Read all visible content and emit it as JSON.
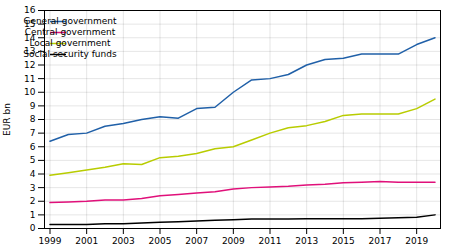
{
  "chart_data": {
    "type": "line",
    "ylabel": "EUR bn",
    "x": [
      1999,
      2000,
      2001,
      2002,
      2003,
      2004,
      2005,
      2006,
      2007,
      2008,
      2009,
      2010,
      2011,
      2012,
      2013,
      2014,
      2015,
      2016,
      2017,
      2018,
      2019,
      2020
    ],
    "series": [
      {
        "name": "General government",
        "color": "#2060a8",
        "values": [
          6.4,
          6.9,
          7.0,
          7.5,
          7.7,
          8.0,
          8.2,
          8.1,
          8.8,
          8.9,
          10.0,
          10.9,
          11.0,
          11.3,
          12.0,
          12.4,
          12.5,
          12.8,
          12.8,
          12.8,
          13.5,
          14.0
        ]
      },
      {
        "name": "Central government",
        "color": "#e0107a",
        "values": [
          1.9,
          1.95,
          2.0,
          2.1,
          2.1,
          2.2,
          2.4,
          2.5,
          2.6,
          2.7,
          2.9,
          3.0,
          3.05,
          3.1,
          3.2,
          3.25,
          3.35,
          3.4,
          3.45,
          3.4,
          3.4,
          3.4
        ]
      },
      {
        "name": "Local government",
        "color": "#b8cc00",
        "values": [
          3.9,
          4.1,
          4.3,
          4.5,
          4.75,
          4.7,
          5.2,
          5.3,
          5.5,
          5.85,
          6.0,
          6.5,
          7.0,
          7.4,
          7.55,
          7.85,
          8.3,
          8.4,
          8.4,
          8.4,
          8.8,
          9.5
        ]
      },
      {
        "name": "Social security funds",
        "color": "#000000",
        "values": [
          0.3,
          0.3,
          0.3,
          0.35,
          0.35,
          0.4,
          0.45,
          0.5,
          0.55,
          0.6,
          0.65,
          0.7,
          0.7,
          0.7,
          0.72,
          0.72,
          0.72,
          0.72,
          0.75,
          0.78,
          0.82,
          1.0
        ]
      }
    ],
    "xlim": [
      1998.7,
      2020.3
    ],
    "xticks": [
      1999,
      2001,
      2003,
      2005,
      2007,
      2009,
      2011,
      2013,
      2015,
      2017,
      2019
    ],
    "ylim": [
      0,
      16
    ],
    "yticks": [
      0,
      1,
      2,
      3,
      4,
      5,
      6,
      7,
      8,
      9,
      10,
      11,
      12,
      13,
      14,
      15,
      16
    ],
    "grid": true,
    "legend": "upper left"
  }
}
